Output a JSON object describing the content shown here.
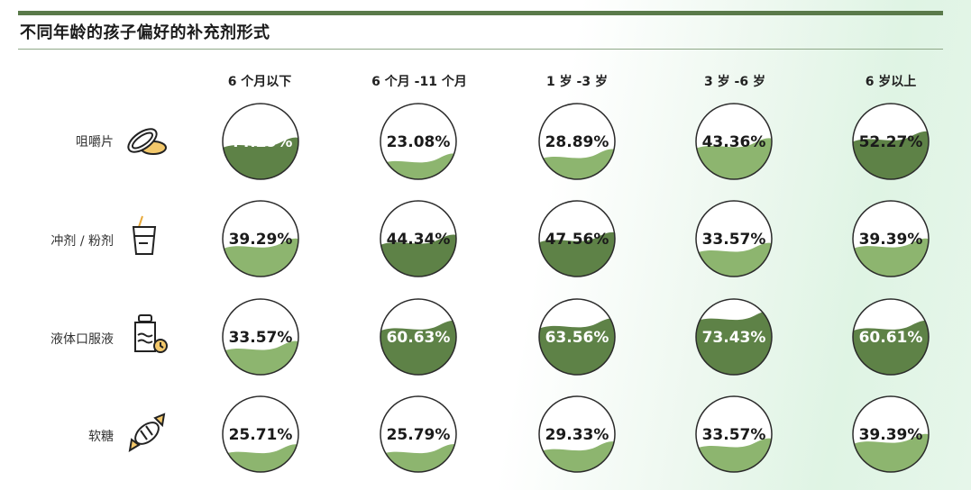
{
  "title": "不同年龄的孩子偏好的补充剂形式",
  "colors": {
    "accent": "#5a7a4a",
    "wave_light": "#8db56f",
    "wave_dark": "#5e8247",
    "circle_stroke": "#2b2b2b"
  },
  "chart_data": {
    "type": "table",
    "title": "不同年龄的孩子偏好的补充剂形式",
    "columns": [
      "6 个月以下",
      "6 个月 -11 个月",
      "1 岁 -3 岁",
      "3 岁 -6 岁",
      "6 岁以上"
    ],
    "rows": [
      {
        "label": "咀嚼片",
        "icon": "chewable-tablet-icon",
        "values": [
          44.29,
          23.08,
          28.89,
          43.36,
          52.27
        ],
        "labels": [
          "44.29%",
          "23.08%",
          "28.89%",
          "43.36%",
          "52.27%"
        ]
      },
      {
        "label": "冲剂 / 粉剂",
        "icon": "cup-straw-icon",
        "values": [
          39.29,
          44.34,
          47.56,
          33.57,
          39.39
        ],
        "labels": [
          "39.29%",
          "44.34%",
          "47.56%",
          "33.57%",
          "39.39%"
        ]
      },
      {
        "label": "液体口服液",
        "icon": "liquid-bottle-icon",
        "values": [
          33.57,
          60.63,
          63.56,
          73.43,
          60.61
        ],
        "labels": [
          "33.57%",
          "60.63%",
          "63.56%",
          "73.43%",
          "60.61%"
        ]
      },
      {
        "label": "软糖",
        "icon": "candy-icon",
        "values": [
          25.71,
          25.79,
          29.33,
          33.57,
          39.39
        ],
        "labels": [
          "25.71%",
          "25.79%",
          "29.33%",
          "33.57%",
          "39.39%"
        ]
      }
    ]
  }
}
